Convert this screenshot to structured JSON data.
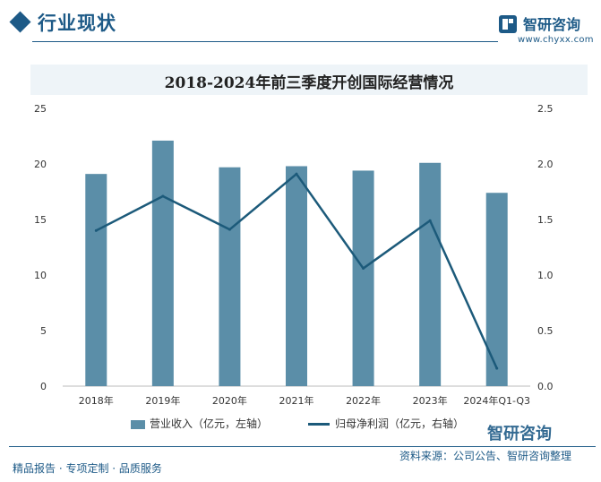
{
  "header": {
    "section_title": "行业现状",
    "brand_name": "智研咨询",
    "brand_url": "www.chyxx.com"
  },
  "chart_data": {
    "type": "bar",
    "title": "2018-2024年前三季度开创国际经营情况",
    "categories": [
      "2018年",
      "2019年",
      "2020年",
      "2021年",
      "2022年",
      "2023年",
      "2024年Q1-Q3"
    ],
    "series": [
      {
        "name": "营业收入（亿元，左轴）",
        "type": "bar",
        "axis": "left",
        "values": [
          19.1,
          22.1,
          19.7,
          19.8,
          19.4,
          20.1,
          17.4
        ]
      },
      {
        "name": "归母净利润（亿元，右轴）",
        "type": "line",
        "axis": "right",
        "values": [
          1.4,
          1.71,
          1.41,
          1.91,
          1.06,
          1.49,
          0.16
        ]
      }
    ],
    "y_left": {
      "ylim": [
        0,
        25
      ],
      "ticks": [
        "0",
        "5",
        "10",
        "15",
        "20",
        "25"
      ]
    },
    "y_right": {
      "ylim": [
        0,
        2.5
      ],
      "ticks": [
        "0.0",
        "0.5",
        "1.0",
        "1.5",
        "2.0",
        "2.5"
      ]
    },
    "colors": {
      "bar": "#5b8ea8",
      "line": "#1c5a7a"
    },
    "grid": false,
    "legend_position": "bottom"
  },
  "footer": {
    "left": "精品报告 · 专项定制 · 品质服务",
    "source": "资料来源：公司公告、智研咨询整理",
    "brand": "智研咨询"
  }
}
